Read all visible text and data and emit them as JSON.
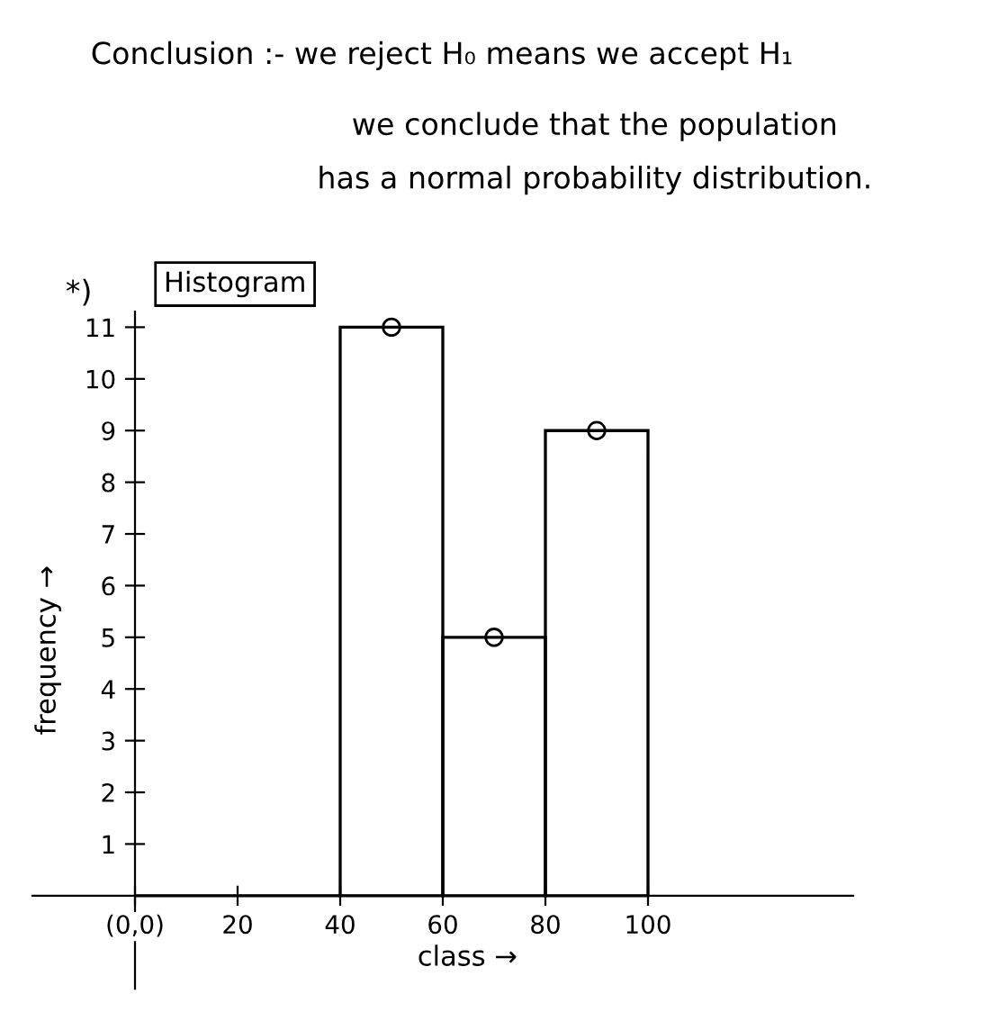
{
  "chart_data": {
    "type": "histogram",
    "title": "Histogram",
    "xlabel": "class →",
    "ylabel": "frequency →",
    "bins": [
      0,
      20,
      40,
      60,
      80,
      100
    ],
    "values": [
      0,
      0,
      11,
      5,
      9
    ],
    "color": "#000000",
    "series": [
      {
        "type": "scatter",
        "x": [
          50,
          70,
          90
        ],
        "values": [
          11,
          5,
          9
        ],
        "color": "#000000",
        "marker": "circle"
      }
    ],
    "xlim": [
      -20,
      140
    ],
    "ylim": [
      -1.8,
      11.3
    ],
    "xticks": [
      {
        "value": 0,
        "label": "(0,0)"
      },
      20,
      40,
      60,
      80,
      100
    ],
    "yticks": [
      1,
      2,
      3,
      4,
      5,
      6,
      7,
      8,
      9,
      10,
      11
    ],
    "grid": false,
    "annotations": [
      "Conclusion :- we reject H₀ means we accept H₁",
      "we conclude that the population",
      "has a normal probability distribution.",
      "*)"
    ]
  }
}
